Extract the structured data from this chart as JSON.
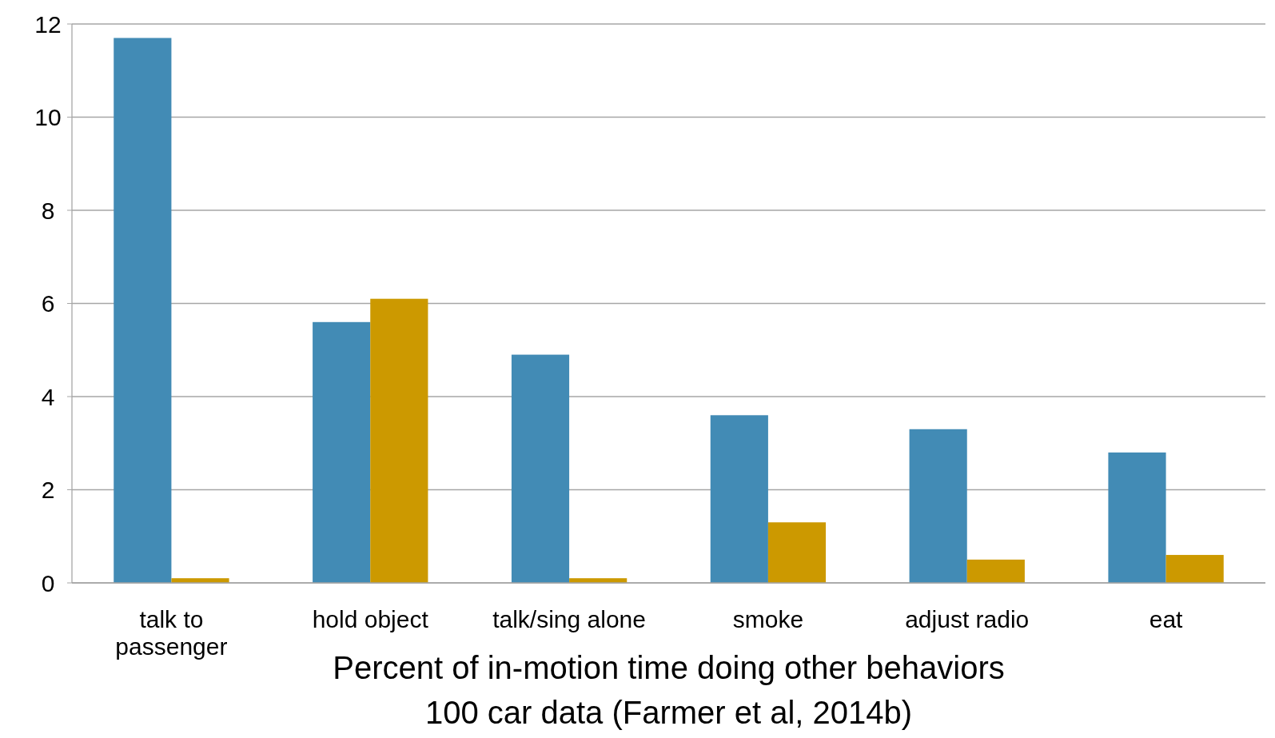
{
  "chart_data": {
    "type": "bar",
    "xlabel": "Percent of in-motion time doing other behaviors\n100 car data (Farmer et al, 2014b)",
    "categories": [
      "talk to passenger",
      "hold object",
      "talk/sing alone",
      "smoke",
      "adjust radio",
      "eat"
    ],
    "series": [
      {
        "color": "#428bb5",
        "values": [
          11.7,
          5.6,
          4.9,
          3.6,
          3.3,
          2.8
        ]
      },
      {
        "color": "#cc9900",
        "values": [
          0.1,
          6.1,
          0.1,
          1.3,
          0.5,
          0.6
        ]
      }
    ],
    "ylim": [
      0,
      12
    ],
    "yticks": [
      0,
      2,
      4,
      6,
      8,
      10,
      12
    ],
    "grid": "y"
  }
}
